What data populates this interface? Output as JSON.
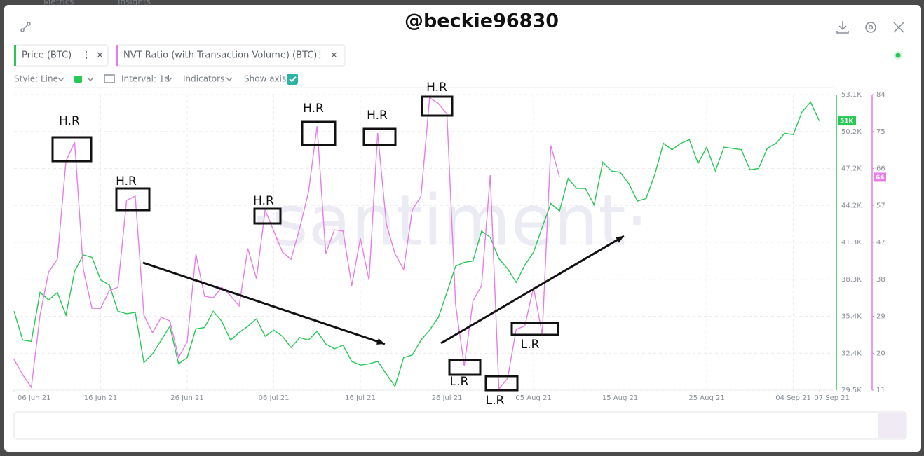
{
  "header": {
    "tabs": [
      "Metrics",
      "Insights"
    ],
    "title": "@beckie96830"
  },
  "toolbar": {
    "style": "Style: Line",
    "interval": "Interval: 1d",
    "indicators": "Indicators:",
    "show_axis": "Show axis"
  },
  "watermark": "·santiment·",
  "chart_data": {
    "type": "line",
    "x": [
      "2021-06-06",
      "2021-06-07",
      "2021-06-08",
      "2021-06-09",
      "2021-06-10",
      "2021-06-11",
      "2021-06-12",
      "2021-06-13",
      "2021-06-14",
      "2021-06-15",
      "2021-06-16",
      "2021-06-17",
      "2021-06-18",
      "2021-06-19",
      "2021-06-20",
      "2021-06-21",
      "2021-06-22",
      "2021-06-23",
      "2021-06-24",
      "2021-06-25",
      "2021-06-26",
      "2021-06-27",
      "2021-06-28",
      "2021-06-29",
      "2021-06-30",
      "2021-07-01",
      "2021-07-02",
      "2021-07-03",
      "2021-07-04",
      "2021-07-05",
      "2021-07-06",
      "2021-07-07",
      "2021-07-08",
      "2021-07-09",
      "2021-07-10",
      "2021-07-11",
      "2021-07-12",
      "2021-07-13",
      "2021-07-14",
      "2021-07-15",
      "2021-07-16",
      "2021-07-17",
      "2021-07-18",
      "2021-07-19",
      "2021-07-20",
      "2021-07-21",
      "2021-07-22",
      "2021-07-23",
      "2021-07-24",
      "2021-07-25",
      "2021-07-26",
      "2021-07-27",
      "2021-07-28",
      "2021-07-29",
      "2021-07-30",
      "2021-07-31",
      "2021-08-01",
      "2021-08-02",
      "2021-08-03",
      "2021-08-04",
      "2021-08-05",
      "2021-08-06",
      "2021-08-07",
      "2021-08-08",
      "2021-08-09",
      "2021-08-10",
      "2021-08-11",
      "2021-08-12",
      "2021-08-13",
      "2021-08-14",
      "2021-08-15",
      "2021-08-16",
      "2021-08-17",
      "2021-08-18",
      "2021-08-19",
      "2021-08-20",
      "2021-08-21",
      "2021-08-22",
      "2021-08-23",
      "2021-08-24",
      "2021-08-25",
      "2021-08-26",
      "2021-08-27",
      "2021-08-28",
      "2021-08-29",
      "2021-08-30",
      "2021-08-31",
      "2021-09-01",
      "2021-09-02",
      "2021-09-03",
      "2021-09-04",
      "2021-09-05",
      "2021-09-06",
      "2021-09-07"
    ],
    "xlim": [
      "2021-06-06",
      "2021-09-07"
    ],
    "xticks": [
      {
        "value": "2021-06-06",
        "label": "06 Jun 21"
      },
      {
        "value": "2021-06-16",
        "label": "16 Jun 21"
      },
      {
        "value": "2021-06-26",
        "label": "26 Jun 21"
      },
      {
        "value": "2021-07-06",
        "label": "06 Jul 21"
      },
      {
        "value": "2021-07-16",
        "label": "16 Jul 21"
      },
      {
        "value": "2021-07-26",
        "label": "26 Jul 21"
      },
      {
        "value": "2021-08-05",
        "label": "05 Aug 21"
      },
      {
        "value": "2021-08-15",
        "label": "15 Aug 21"
      },
      {
        "value": "2021-08-25",
        "label": "25 Aug 21"
      },
      {
        "value": "2021-09-04",
        "label": "04 Sep 21"
      },
      {
        "value": "2021-09-07",
        "label": "07 Sep 21"
      }
    ],
    "ylim": [
      29500,
      53100
    ],
    "yticks": [
      {
        "value": 29500,
        "label": "29.5K"
      },
      {
        "value": 32450,
        "label": "32.4K"
      },
      {
        "value": 35400,
        "label": "35.4K"
      },
      {
        "value": 38350,
        "label": "38.3K"
      },
      {
        "value": 41300,
        "label": "41.3K"
      },
      {
        "value": 44250,
        "label": "44.2K"
      },
      {
        "value": 47200,
        "label": "47.2K"
      },
      {
        "value": 50150,
        "label": "50.2K"
      },
      {
        "value": 53100,
        "label": "53.1K"
      }
    ],
    "y2lim": [
      11,
      84
    ],
    "y2ticks": [
      11,
      {
        "value": 20.125,
        "label": "20"
      },
      {
        "value": 29.25,
        "label": "29"
      },
      {
        "value": 38.375,
        "label": "38"
      },
      {
        "value": 47.5,
        "label": "47"
      },
      {
        "value": 56.625,
        "label": "57"
      },
      {
        "value": 65.75,
        "label": "66"
      },
      {
        "value": 74.875,
        "label": "75"
      },
      84
    ],
    "grid": true,
    "series": [
      {
        "name": "Price (BTC)",
        "color": "#26c953",
        "badge": "51K",
        "values": [
          35800,
          33500,
          33400,
          37300,
          36700,
          37300,
          35500,
          39000,
          40300,
          40100,
          38300,
          37900,
          35800,
          35600,
          35700,
          31700,
          32400,
          33500,
          34600,
          31600,
          32100,
          34400,
          34500,
          35800,
          35000,
          33500,
          34100,
          34600,
          35200,
          33800,
          34300,
          33800,
          32900,
          33700,
          33500,
          34200,
          33200,
          32800,
          33100,
          31800,
          31500,
          31600,
          31800,
          30800,
          29800,
          32100,
          32300,
          33500,
          34300,
          35300,
          37300,
          39400,
          39700,
          39800,
          42200,
          41700,
          40000,
          39200,
          38100,
          39500,
          40500,
          42500,
          44400,
          43800,
          46400,
          45600,
          45600,
          44300,
          47700,
          47000,
          46900,
          46000,
          44600,
          44800,
          46700,
          49200,
          48700,
          49200,
          49500,
          47600,
          48900,
          47000,
          48900,
          48800,
          48700,
          47100,
          47200,
          48800,
          49200,
          50000,
          49900,
          51700,
          52500,
          51000
        ]
      },
      {
        "name": "NVT Ratio (with Transaction Volume) (BTC)",
        "color": "#e87ce8",
        "axis": "y2",
        "badge": "64",
        "values": [
          18.6,
          14.8,
          11.7,
          29.5,
          40.2,
          43.3,
          67.6,
          72.2,
          40.8,
          31.2,
          31.2,
          35.6,
          36.4,
          57.9,
          58.9,
          29.5,
          25.2,
          29.0,
          28.1,
          19.1,
          22.9,
          44.6,
          34.2,
          33.8,
          36.4,
          34.3,
          31.8,
          46.0,
          38.5,
          55.5,
          50.3,
          45.1,
          43.3,
          51.1,
          59.8,
          76.2,
          44.7,
          50.6,
          50.3,
          36.8,
          48.5,
          38.2,
          74.5,
          52.0,
          44.7,
          40.8,
          55.5,
          58.9,
          83.2,
          81.8,
          79.2,
          32.1,
          16.9,
          33.0,
          36.8,
          64.1,
          11.3,
          13.9,
          26.0,
          26.9,
          36.4,
          24.7,
          71.4,
          63.6,
          null,
          null,
          null,
          null,
          null,
          null,
          null,
          null,
          null,
          null,
          null,
          null,
          null,
          null,
          null,
          null,
          null,
          null,
          null,
          null,
          null,
          null,
          null,
          null,
          null,
          null,
          null,
          null,
          null,
          null
        ]
      }
    ],
    "annotations": [
      "H.R",
      "H.R",
      "H.R",
      "H.R",
      "H.R",
      "H.R",
      "L.R",
      "L.R",
      "L.R"
    ]
  }
}
